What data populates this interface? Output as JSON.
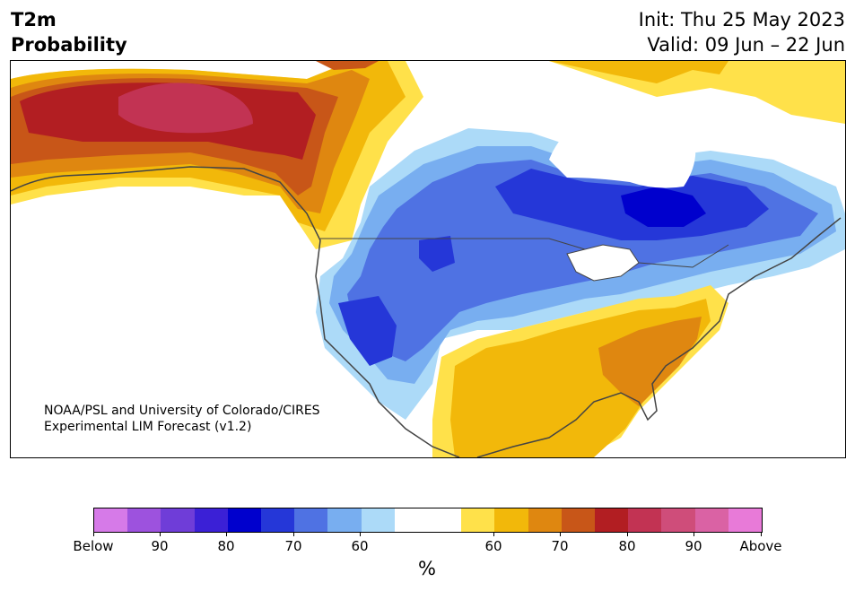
{
  "title": {
    "line1": "T2m",
    "line2": "Probability",
    "init": "Init: Thu 25 May 2023",
    "valid": "Valid: 09 Jun – 22 Jun"
  },
  "credit": {
    "line1": "NOAA/PSL and University of Colorado/CIRES",
    "line2": "Experimental LIM Forecast (v1.2)"
  },
  "colorbar": {
    "colors": [
      "#d67ae8",
      "#9d52de",
      "#6f3dd8",
      "#3b20d6",
      "#0000cd",
      "#2537d8",
      "#4f72e3",
      "#78aef0",
      "#acdaf8",
      "#ffffff",
      "#ffffff",
      "#ffe14a",
      "#f2b80a",
      "#df8710",
      "#c85618",
      "#b21e22",
      "#c23353",
      "#cf4d7a",
      "#da62a4",
      "#e87ad8"
    ],
    "tick_labels": [
      "Below",
      "90",
      "80",
      "70",
      "60",
      "60",
      "70",
      "80",
      "90",
      "Above"
    ],
    "units": "%"
  }
}
